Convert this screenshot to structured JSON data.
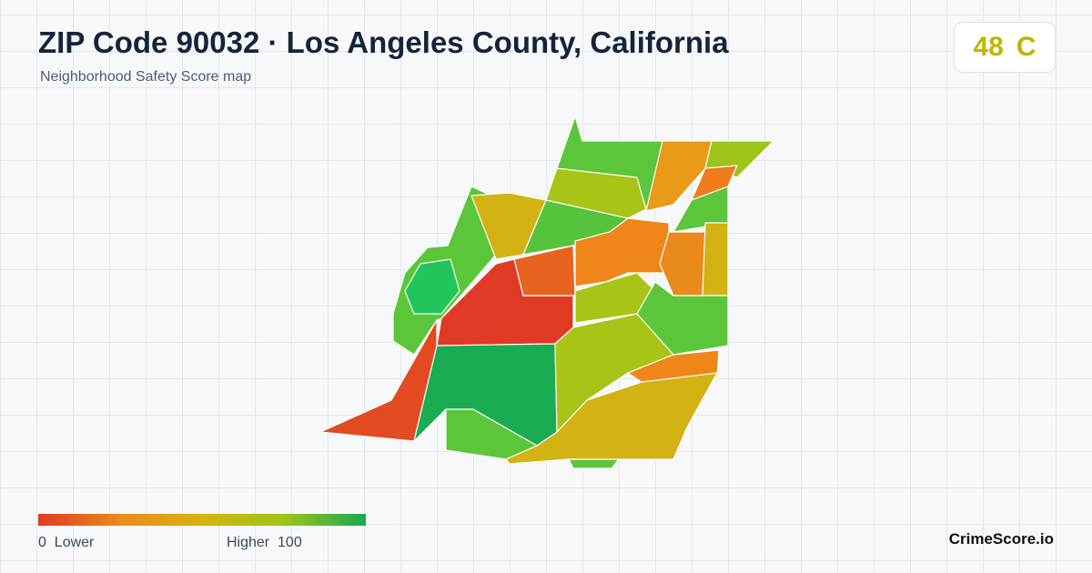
{
  "header": {
    "title": "ZIP Code 90032 · Los Angeles County, California",
    "subtitle": "Neighborhood Safety Score map"
  },
  "score": {
    "value": 48,
    "grade": "C"
  },
  "legend": {
    "min": 0,
    "min_label": "Lower",
    "max_label": "Higher",
    "max": 100
  },
  "footer": {
    "brand": "CrimeScore.io"
  }
}
